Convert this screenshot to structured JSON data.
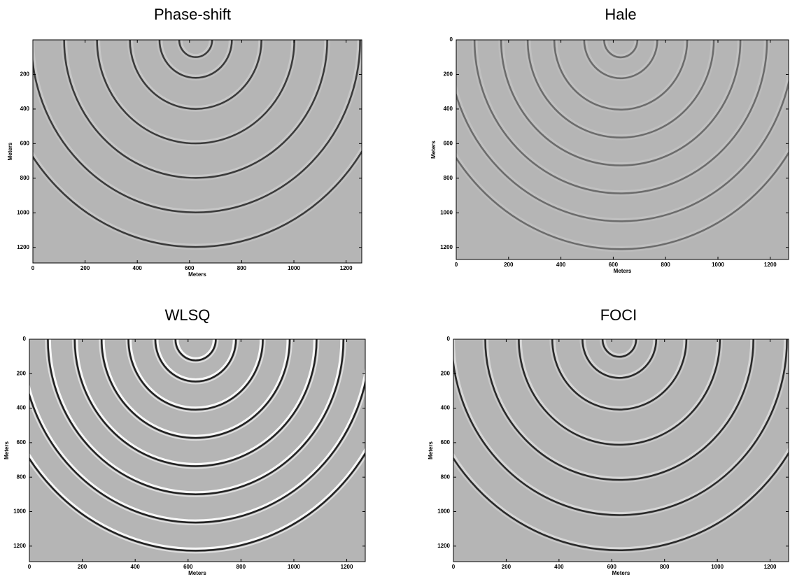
{
  "chart_data": [
    {
      "type": "image",
      "title": "Phase-shift",
      "xlabel": "Meters",
      "ylabel": "Meters",
      "xlim": [
        0,
        1260
      ],
      "ylim": [
        0,
        1290
      ],
      "y_reversed": true,
      "xticks": [
        0,
        200,
        400,
        600,
        800,
        1000,
        1200
      ],
      "yticks": [
        200,
        400,
        600,
        800,
        1000,
        1200
      ]
    },
    {
      "type": "image",
      "title": "Hale",
      "xlabel": "Meters",
      "ylabel": "Meters",
      "xlim": [
        0,
        1270
      ],
      "ylim": [
        0,
        1270
      ],
      "y_reversed": true,
      "xticks": [
        0,
        200,
        400,
        600,
        800,
        1000,
        1200
      ],
      "yticks": [
        0,
        200,
        400,
        600,
        800,
        1000,
        1200
      ]
    },
    {
      "type": "image",
      "title": "WLSQ",
      "xlabel": "Meters",
      "ylabel": "Meters",
      "xlim": [
        0,
        1270
      ],
      "ylim": [
        0,
        1290
      ],
      "y_reversed": true,
      "xticks": [
        0,
        200,
        400,
        600,
        800,
        1000,
        1200
      ],
      "yticks": [
        0,
        200,
        400,
        600,
        800,
        1000,
        1200
      ]
    },
    {
      "type": "image",
      "title": "FOCI",
      "xlabel": "Meters",
      "ylabel": "Meters",
      "xlim": [
        0,
        1270
      ],
      "ylim": [
        0,
        1290
      ],
      "y_reversed": true,
      "xticks": [
        0,
        200,
        400,
        600,
        800,
        1000,
        1200
      ],
      "yticks": [
        0,
        200,
        400,
        600,
        800,
        1000,
        1200
      ]
    }
  ]
}
